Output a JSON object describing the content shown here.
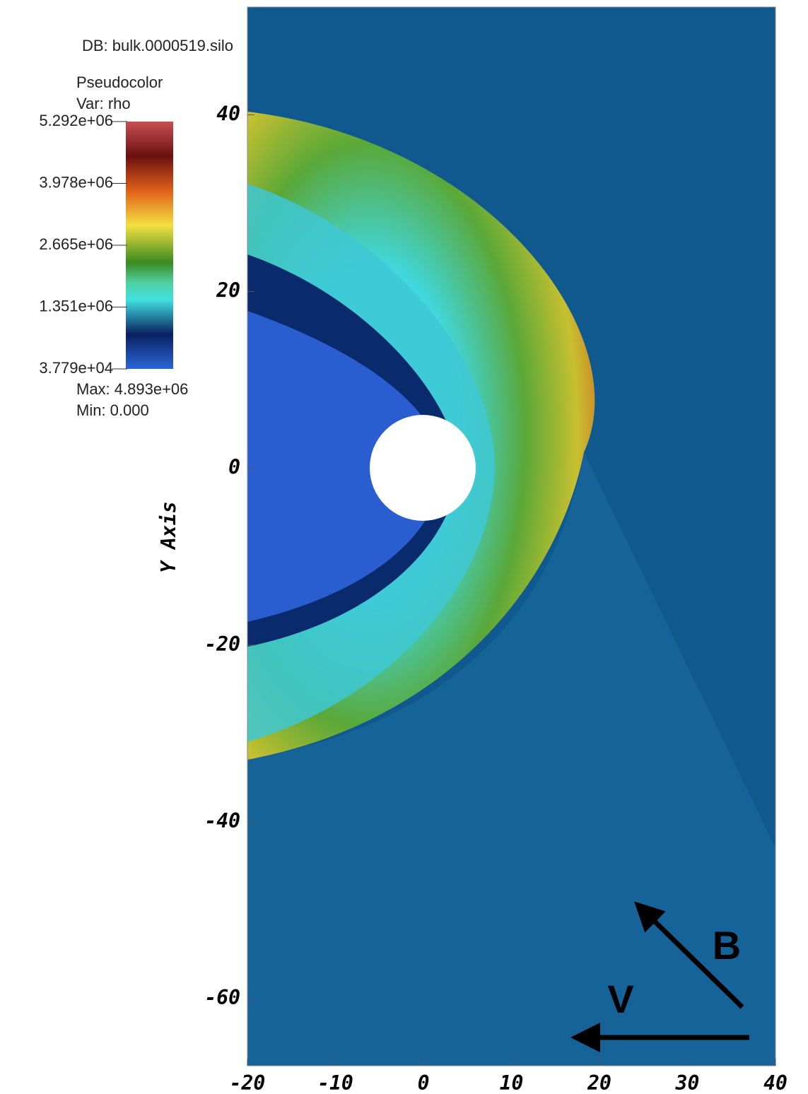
{
  "chart_data": {
    "type": "pseudocolor",
    "db": "DB: bulk.0000519.silo",
    "plot_name": "Pseudocolor",
    "var": "Var: rho",
    "ylabel": "Y Axis",
    "xlim": [
      -20,
      40
    ],
    "ylim": [
      -67.6,
      52.2
    ],
    "xticks": [
      -20,
      -10,
      0,
      10,
      20,
      30,
      40
    ],
    "yticks": [
      -60,
      -40,
      -20,
      0,
      20,
      40
    ],
    "colorbar": {
      "lim": [
        37790,
        5292000
      ],
      "ticks": [
        {
          "value": 5292000,
          "label": "5.292e+06"
        },
        {
          "value": 3978000,
          "label": "3.978e+06"
        },
        {
          "value": 2665000,
          "label": "2.665e+06"
        },
        {
          "value": 1351000,
          "label": "1.351e+06"
        },
        {
          "value": 37790,
          "label": "3.779e+04"
        }
      ]
    },
    "stats": [
      "Max:  4.893e+06",
      "Min:  0.000"
    ],
    "annotations": [
      "B",
      "V"
    ]
  }
}
